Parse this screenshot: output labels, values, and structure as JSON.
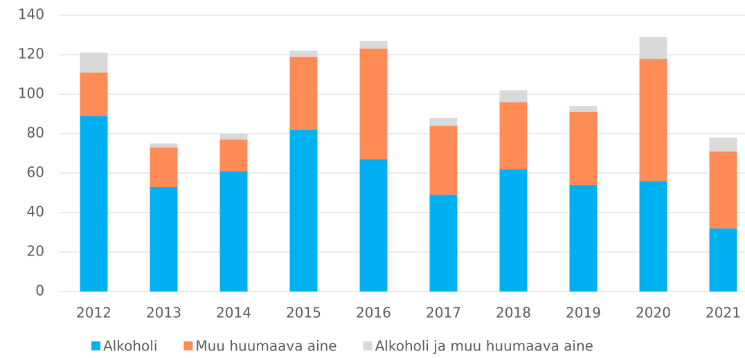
{
  "chart_data": {
    "type": "stacked_bar",
    "categories": [
      "2012",
      "2013",
      "2014",
      "2015",
      "2016",
      "2017",
      "2018",
      "2019",
      "2020",
      "2021"
    ],
    "series": [
      {
        "name": "Alkoholi",
        "color": "#00b0f0",
        "values": [
          89,
          53,
          61,
          82,
          67,
          49,
          62,
          54,
          56,
          32
        ]
      },
      {
        "name": "Muu huumaava aine",
        "color": "#ff8b57",
        "values": [
          22,
          20,
          16,
          37,
          56,
          35,
          34,
          37,
          62,
          39
        ]
      },
      {
        "name": "Alkoholi ja muu huumaava aine",
        "color": "#d9d9d9",
        "values": [
          10,
          2,
          3,
          3,
          4,
          4,
          6,
          3,
          11,
          7
        ]
      }
    ],
    "ylim": [
      0,
      140
    ],
    "yticks": [
      0,
      20,
      40,
      60,
      80,
      100,
      120,
      140
    ],
    "grid": true,
    "legend": "bottom"
  }
}
